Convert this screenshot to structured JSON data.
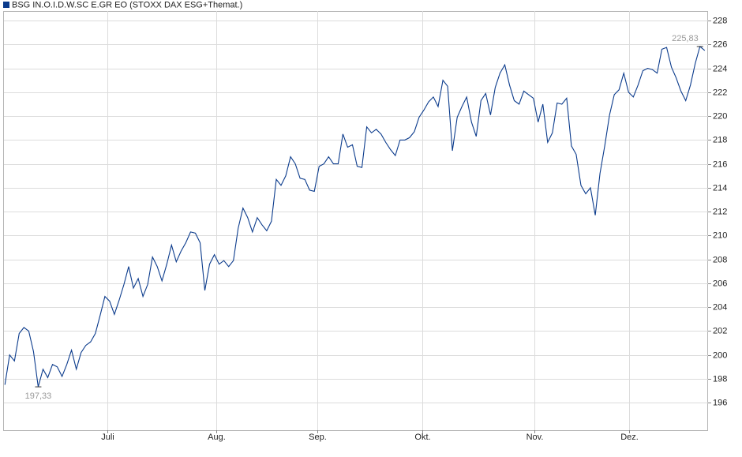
{
  "chart_data": {
    "type": "line",
    "series": [
      {
        "name": "BSG IN.O.I.D.W.SC E.GR EO (STOXX DAX ESG+Themat.)",
        "color": "#0b3b8c",
        "values": [
          197.5,
          200.0,
          199.5,
          201.8,
          202.3,
          202.0,
          200.3,
          197.33,
          198.8,
          198.1,
          199.2,
          199.0,
          198.2,
          199.2,
          200.4,
          198.8,
          200.2,
          200.8,
          201.1,
          201.8,
          203.3,
          204.9,
          204.5,
          203.4,
          204.6,
          205.9,
          207.4,
          205.6,
          206.4,
          204.9,
          205.9,
          208.2,
          207.4,
          206.2,
          207.6,
          209.2,
          207.8,
          208.7,
          209.4,
          210.3,
          210.2,
          209.4,
          205.4,
          207.6,
          208.4,
          207.6,
          207.9,
          207.4,
          207.9,
          210.6,
          212.3,
          211.5,
          210.3,
          211.5,
          210.9,
          210.4,
          211.2,
          214.7,
          214.2,
          215.0,
          216.6,
          216.0,
          214.8,
          214.7,
          213.8,
          213.7,
          215.8,
          216.0,
          216.6,
          216.0,
          216.0,
          218.5,
          217.4,
          217.6,
          215.8,
          215.7,
          219.1,
          218.6,
          218.9,
          218.5,
          217.8,
          217.2,
          216.7,
          218.0,
          218.0,
          218.2,
          218.7,
          219.9,
          220.5,
          221.2,
          221.6,
          220.8,
          223.0,
          222.5,
          217.1,
          219.9,
          220.8,
          221.6,
          219.5,
          218.3,
          221.3,
          221.9,
          220.1,
          222.4,
          223.6,
          224.3,
          222.6,
          221.3,
          221.0,
          222.1,
          221.8,
          221.5,
          219.5,
          221.0,
          217.8,
          218.6,
          221.1,
          221.0,
          221.5,
          217.5,
          216.8,
          214.2,
          213.5,
          214.0,
          211.7,
          215.2,
          217.5,
          220.1,
          221.8,
          222.2,
          223.6,
          222.0,
          221.6,
          222.6,
          223.8,
          224.0,
          223.9,
          223.6,
          225.6,
          225.75,
          224.1,
          223.2,
          222.1,
          221.3,
          222.6,
          224.4,
          225.83,
          225.5
        ]
      }
    ],
    "xlim": [
      -0.2,
      147.7
    ],
    "xticks": [
      {
        "value": 21.5,
        "label": "Juli"
      },
      {
        "value": 44.4,
        "label": "Aug."
      },
      {
        "value": 65.7,
        "label": "Sep."
      },
      {
        "value": 87.7,
        "label": "Okt."
      },
      {
        "value": 111.2,
        "label": "Nov."
      },
      {
        "value": 131.1,
        "label": "Dez."
      }
    ],
    "ylim": [
      193.7,
      228.8
    ],
    "yticks": [
      196,
      198,
      200,
      202,
      204,
      206,
      208,
      210,
      212,
      214,
      216,
      218,
      220,
      222,
      224,
      226,
      228
    ],
    "grid": true,
    "annotations": [
      {
        "index": 7,
        "value": 197.33,
        "label": "197,33",
        "position": "below"
      },
      {
        "index": 146,
        "value": 225.83,
        "label": "225,83",
        "position": "above"
      }
    ]
  }
}
